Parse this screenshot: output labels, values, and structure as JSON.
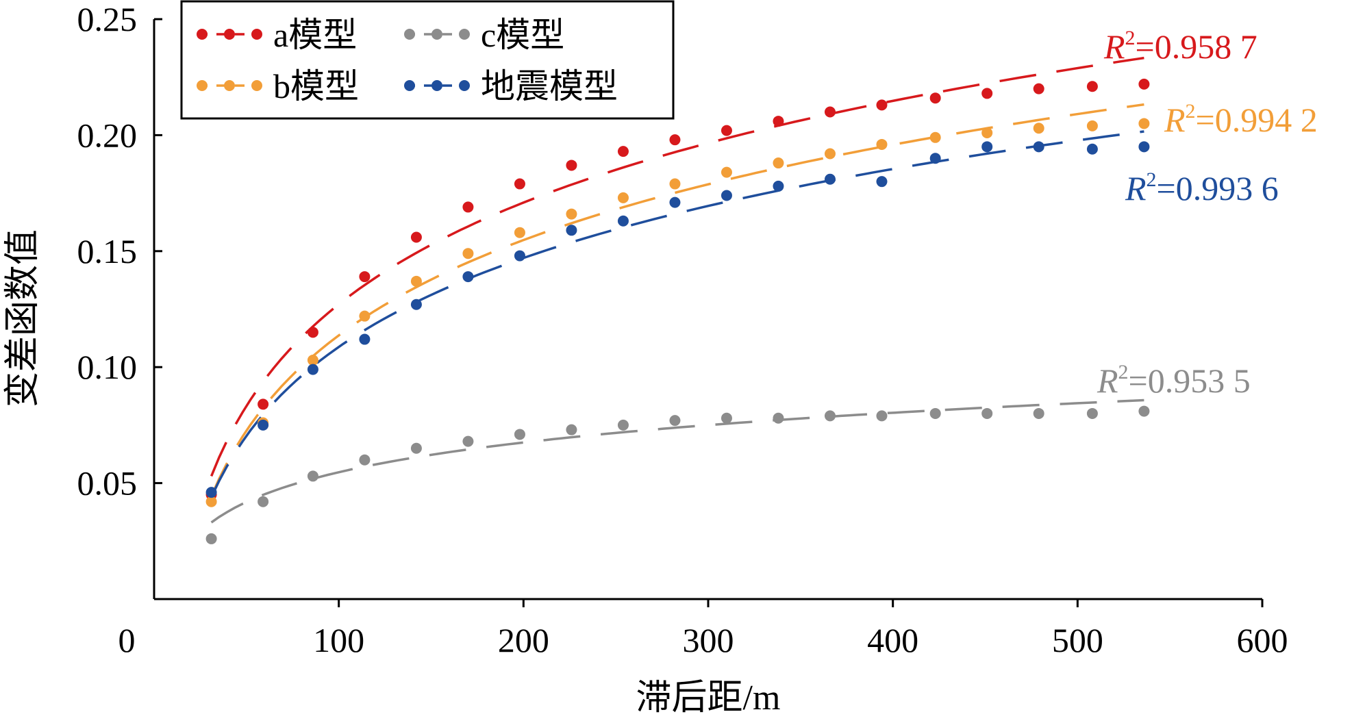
{
  "chart_data": {
    "type": "scatter",
    "xlabel": "滞后距/m",
    "ylabel": "变差函数值",
    "xlim": [
      0,
      600
    ],
    "ylim": [
      0,
      0.25
    ],
    "x_ticks": [
      "0",
      "100",
      "200",
      "300",
      "400",
      "500",
      "600"
    ],
    "y_ticks": [
      "0.05",
      "0.10",
      "0.15",
      "0.20",
      "0.25"
    ],
    "legend_position": "top-left",
    "x": [
      31,
      59,
      86,
      114,
      142,
      170,
      198,
      226,
      254,
      282,
      310,
      338,
      366,
      394,
      423,
      451,
      479,
      508,
      536
    ],
    "series": [
      {
        "name": "a模型",
        "color": "#d7191c",
        "values": [
          0.045,
          0.084,
          0.115,
          0.139,
          0.156,
          0.169,
          0.179,
          0.187,
          0.193,
          0.198,
          0.202,
          0.206,
          0.21,
          0.213,
          0.216,
          0.218,
          0.22,
          0.221,
          0.222
        ],
        "r2_prefix": "R",
        "r2_exp": "2",
        "r2_value": "=0.958 7"
      },
      {
        "name": "b模型",
        "color": "#f29e38",
        "values": [
          0.042,
          0.076,
          0.103,
          0.122,
          0.137,
          0.149,
          0.158,
          0.166,
          0.173,
          0.179,
          0.184,
          0.188,
          0.192,
          0.196,
          0.199,
          0.201,
          0.203,
          0.204,
          0.205
        ],
        "r2_prefix": "R",
        "r2_exp": "2",
        "r2_value": "=0.994 2"
      },
      {
        "name": "c模型",
        "color": "#8c8c8c",
        "values": [
          0.026,
          0.042,
          0.053,
          0.06,
          0.065,
          0.068,
          0.071,
          0.073,
          0.075,
          0.077,
          0.078,
          0.078,
          0.079,
          0.079,
          0.08,
          0.08,
          0.08,
          0.08,
          0.081
        ],
        "r2_prefix": "R",
        "r2_exp": "2",
        "r2_value": "=0.953 5"
      },
      {
        "name": "地震模型",
        "color": "#1f4e9c",
        "values": [
          0.046,
          0.075,
          0.099,
          0.112,
          0.127,
          0.139,
          0.148,
          0.159,
          0.163,
          0.171,
          0.174,
          0.178,
          0.181,
          0.18,
          0.19,
          0.195,
          0.195,
          0.194,
          0.195
        ],
        "r2_prefix": "R",
        "r2_exp": "2",
        "r2_value": "=0.993 6"
      }
    ],
    "legend_order": [
      0,
      2,
      1,
      3
    ]
  }
}
